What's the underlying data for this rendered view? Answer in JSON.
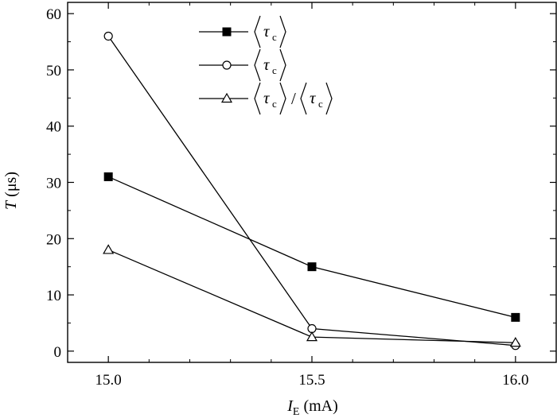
{
  "chart_data": {
    "type": "line",
    "xlabel_main": "I",
    "xlabel_sub": "E",
    "xlabel_unit": " (mA)",
    "ylabel_main": "T",
    "ylabel_unit": " (μs)",
    "x_ticks": [
      "15.0",
      "15.5",
      "16.0"
    ],
    "y_ticks": [
      "0",
      "10",
      "20",
      "30",
      "40",
      "50",
      "60"
    ],
    "xlim": [
      14.9,
      16.1
    ],
    "ylim": [
      -2,
      62
    ],
    "grid": false,
    "legend_placement": "top-center",
    "series": [
      {
        "marker": "filled-square",
        "x": [
          15.0,
          15.5,
          16.0
        ],
        "y": [
          31,
          15,
          6
        ]
      },
      {
        "marker": "open-circle",
        "x": [
          15.0,
          15.5,
          16.0
        ],
        "y": [
          56,
          4,
          1
        ]
      },
      {
        "marker": "open-triangle",
        "x": [
          15.0,
          15.5,
          16.0
        ],
        "y": [
          18,
          2.5,
          1.5
        ]
      }
    ],
    "legend": [
      {
        "symbol": "τ",
        "subscript": "c"
      },
      {
        "symbol": "τ",
        "subscript": "c"
      },
      {
        "symbol": "τ",
        "subscript": "c",
        "divider": "/",
        "symbol2": "τ",
        "subscript2": "c"
      }
    ]
  }
}
